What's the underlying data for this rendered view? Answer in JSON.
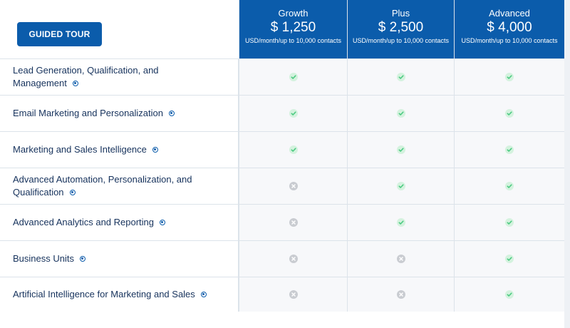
{
  "guided_tour_label": "GUIDED TOUR",
  "plans": [
    {
      "name": "Growth",
      "price": "$ 1,250",
      "desc": "USD/month/up to 10,000 contacts"
    },
    {
      "name": "Plus",
      "price": "$ 2,500",
      "desc": "USD/month/up to 10,000 contacts"
    },
    {
      "name": "Advanced",
      "price": "$ 4,000",
      "desc": "USD/month/up to 10,000 contacts"
    }
  ],
  "features": [
    {
      "label": "Lead Generation, Qualification, and Management",
      "availability": [
        "included",
        "included",
        "included"
      ]
    },
    {
      "label": "Email Marketing and Personalization",
      "availability": [
        "included",
        "included",
        "included"
      ]
    },
    {
      "label": "Marketing and Sales Intelligence",
      "availability": [
        "included",
        "included",
        "included"
      ]
    },
    {
      "label": "Advanced Automation, Personalization, and Qualification",
      "availability": [
        "not-included",
        "included",
        "included"
      ]
    },
    {
      "label": "Advanced Analytics and Reporting",
      "availability": [
        "not-included",
        "included",
        "included"
      ]
    },
    {
      "label": "Business Units",
      "availability": [
        "not-included",
        "not-included",
        "included"
      ]
    },
    {
      "label": "Artificial Intelligence for Marketing and Sales",
      "availability": [
        "not-included",
        "not-included",
        "included"
      ]
    }
  ],
  "colors": {
    "brand_blue": "#0b5cab",
    "check_green": "#4bca81",
    "check_bg": "#d4f2de",
    "cross_gray": "#c9ccd1"
  }
}
